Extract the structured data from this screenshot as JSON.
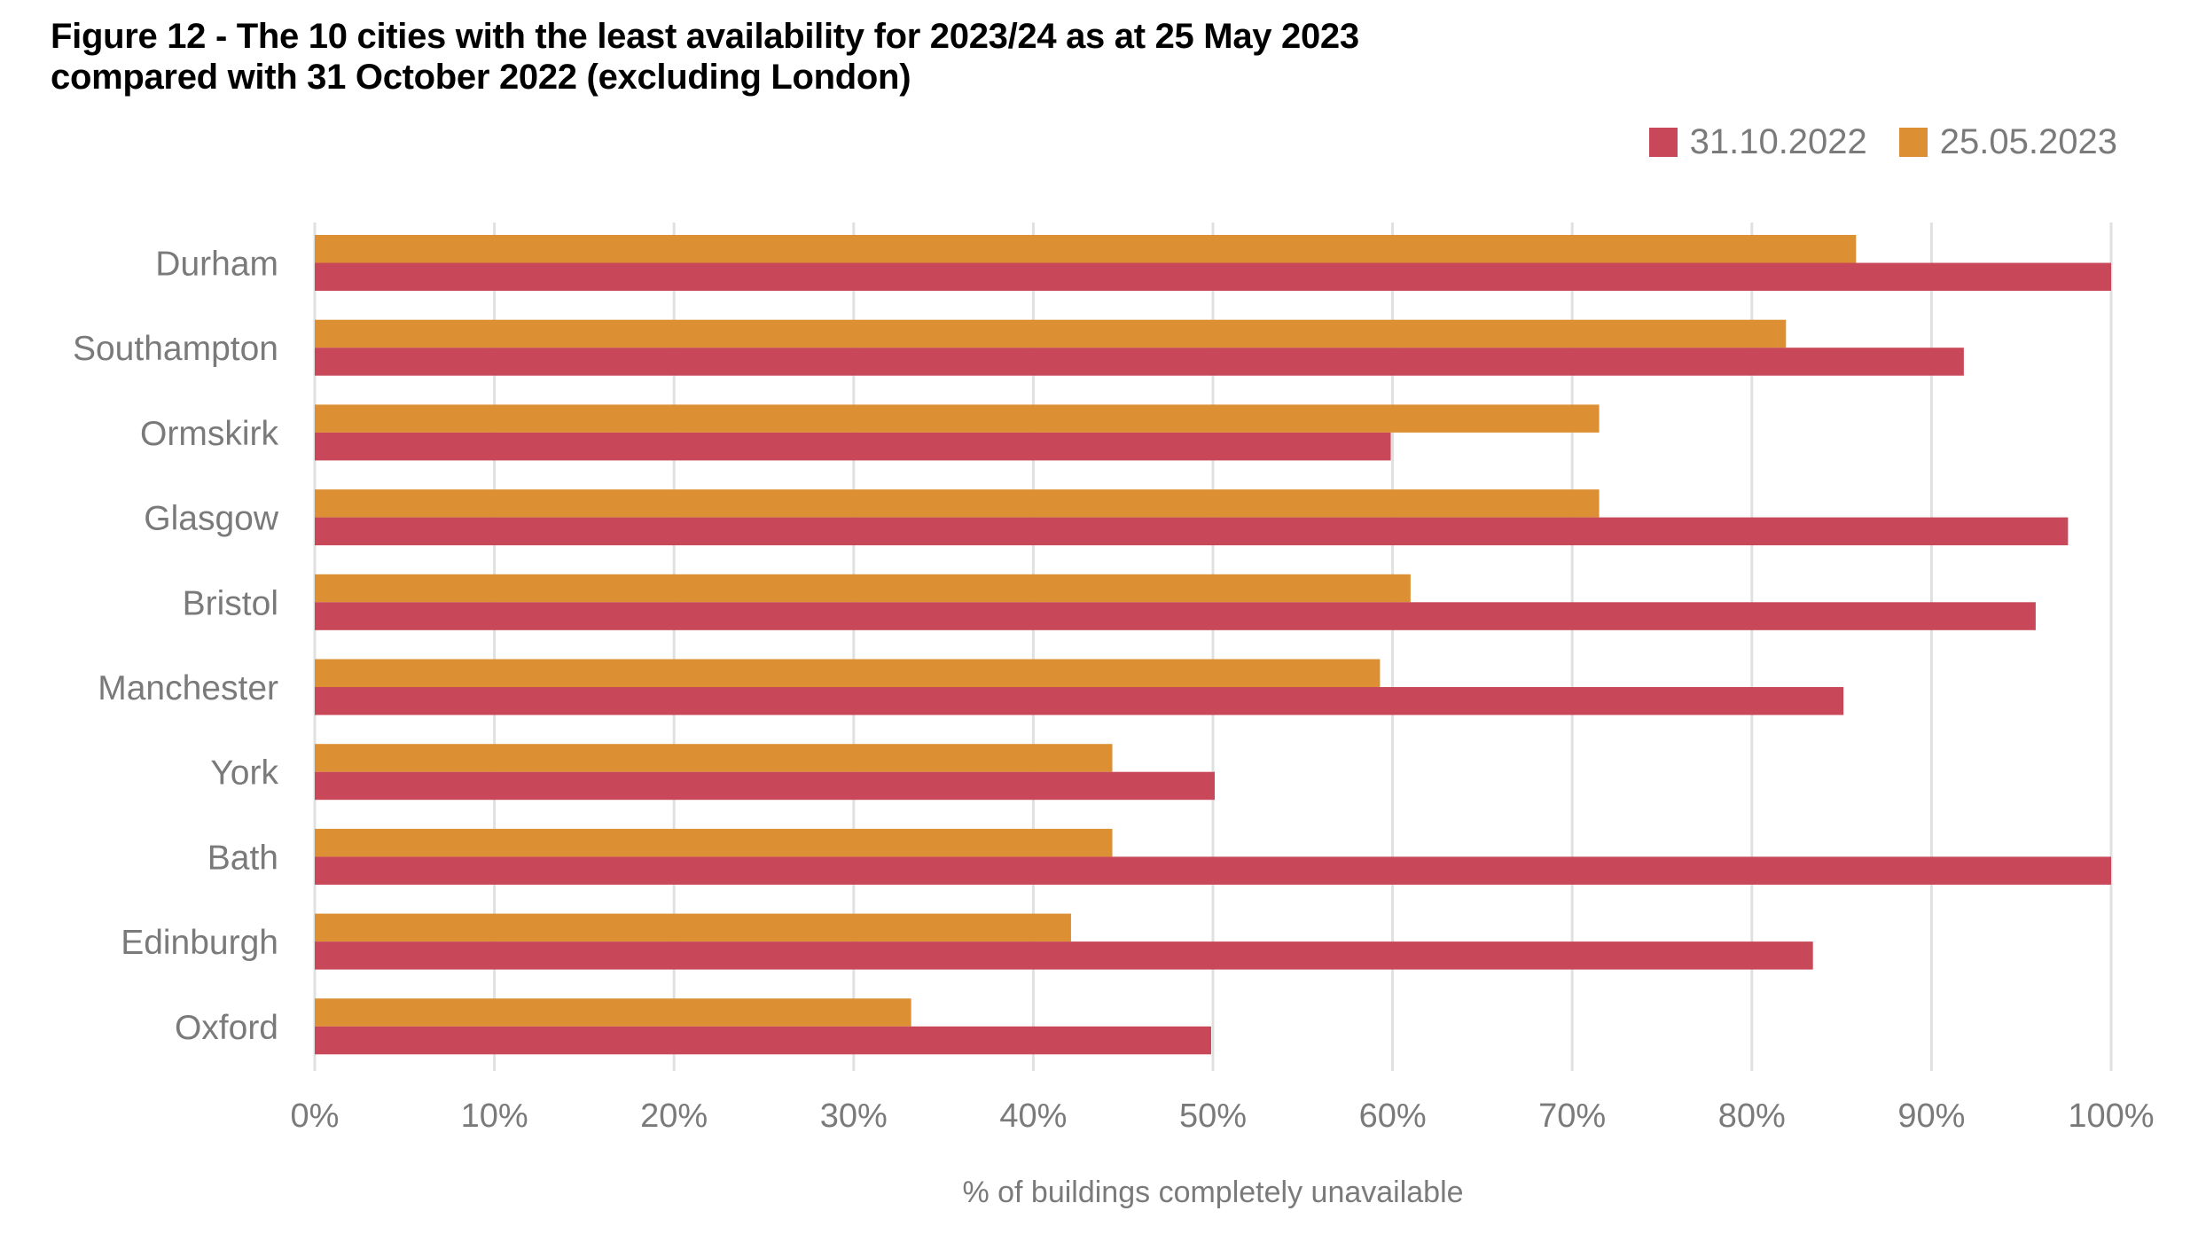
{
  "chart_data": {
    "type": "bar",
    "orientation": "horizontal",
    "title": "Figure 12 - The 10 cities with the least availability for 2023/24 as at 25 May 2023 compared with 31 October 2022 (excluding London)",
    "title_lines": [
      "Figure 12 - The 10 cities with the least availability for 2023/24 as at 25 May 2023",
      "compared with 31 October 2022 (excluding London)"
    ],
    "categories": [
      "Durham",
      "Southampton",
      "Ormskirk",
      "Glasgow",
      "Bristol",
      "Manchester",
      "York",
      "Bath",
      "Edinburgh",
      "Oxford"
    ],
    "series": [
      {
        "name": "31.10.2022",
        "color": "#C84758",
        "values": [
          100,
          91.8,
          59.9,
          97.6,
          95.8,
          85.1,
          50.1,
          100,
          83.4,
          49.9
        ]
      },
      {
        "name": "25.05.2023",
        "color": "#DC9033",
        "values": [
          85.8,
          81.9,
          71.5,
          71.5,
          61.0,
          59.3,
          44.4,
          44.4,
          42.1,
          33.2
        ]
      }
    ],
    "xlabel": "% of buildings completely unavailable",
    "ylabel": "",
    "xlim": [
      0,
      100
    ],
    "xticks": [
      "0%",
      "10%",
      "20%",
      "30%",
      "40%",
      "50%",
      "60%",
      "70%",
      "80%",
      "90%",
      "100%"
    ],
    "grid": "vertical",
    "legend_position": "top-right"
  }
}
